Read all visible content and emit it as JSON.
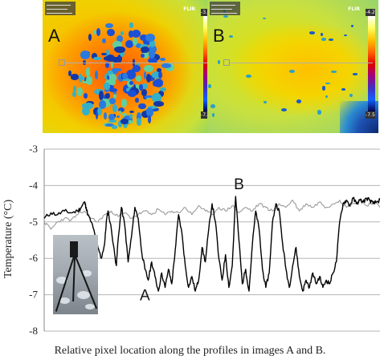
{
  "images": {
    "a": {
      "letter": "A",
      "brand": "FLIR",
      "scale_max": "-3.6",
      "scale_min": "-7.2",
      "hud": [
        "Max -4.1",
        "Min -6.9",
        "Average -5.5"
      ]
    },
    "b": {
      "letter": "B",
      "brand": "FLIR",
      "scale_max": "-4.2",
      "scale_min": "-7.5",
      "hud": [
        "Max -4.3",
        "Min -6.3",
        "Average -4.7"
      ]
    }
  },
  "chart_data": {
    "type": "line",
    "ylabel": "Temperature (°C)",
    "xlabel": "Relative pixel location along the profiles in images A and B.",
    "ylim": [
      -8,
      -3
    ],
    "yticks": [
      -3,
      -4,
      -5,
      -6,
      -7,
      -8
    ],
    "grid": true,
    "colors": {
      "A": "#000000",
      "B": "#9a9a9a",
      "grid": "#b5b5b5"
    },
    "annotations": [
      {
        "text": "A",
        "x": 0.3,
        "y": -7.0
      },
      {
        "text": "B",
        "x": 0.58,
        "y": -3.95
      }
    ],
    "series": [
      {
        "name": "A",
        "x": [
          0.0,
          0.02,
          0.04,
          0.06,
          0.08,
          0.1,
          0.11,
          0.12,
          0.125,
          0.13,
          0.14,
          0.15,
          0.16,
          0.17,
          0.18,
          0.185,
          0.19,
          0.2,
          0.21,
          0.215,
          0.22,
          0.23,
          0.24,
          0.25,
          0.26,
          0.27,
          0.28,
          0.29,
          0.3,
          0.31,
          0.32,
          0.33,
          0.34,
          0.35,
          0.36,
          0.37,
          0.38,
          0.39,
          0.4,
          0.41,
          0.42,
          0.43,
          0.44,
          0.45,
          0.46,
          0.47,
          0.48,
          0.49,
          0.5,
          0.51,
          0.52,
          0.53,
          0.54,
          0.55,
          0.56,
          0.57,
          0.58,
          0.59,
          0.6,
          0.61,
          0.62,
          0.63,
          0.64,
          0.65,
          0.66,
          0.67,
          0.68,
          0.69,
          0.7,
          0.71,
          0.72,
          0.73,
          0.74,
          0.75,
          0.76,
          0.77,
          0.78,
          0.79,
          0.8,
          0.81,
          0.82,
          0.83,
          0.84,
          0.85,
          0.86,
          0.87,
          0.88,
          0.89,
          0.9,
          0.91,
          0.92,
          0.93,
          0.94,
          0.95,
          0.96,
          0.97,
          0.98,
          0.99,
          1.0
        ],
        "y": [
          -4.9,
          -4.75,
          -4.8,
          -4.7,
          -4.75,
          -4.7,
          -4.6,
          -4.45,
          -4.6,
          -4.8,
          -5.0,
          -5.3,
          -5.7,
          -6.0,
          -5.6,
          -5.0,
          -4.7,
          -5.2,
          -5.9,
          -6.2,
          -5.5,
          -4.6,
          -5.1,
          -6.1,
          -5.4,
          -4.6,
          -4.9,
          -5.8,
          -6.3,
          -6.6,
          -6.1,
          -6.5,
          -6.9,
          -6.4,
          -6.8,
          -6.3,
          -6.7,
          -5.8,
          -4.8,
          -5.3,
          -6.2,
          -6.8,
          -6.5,
          -6.9,
          -6.6,
          -5.7,
          -6.1,
          -5.2,
          -4.5,
          -5.0,
          -6.0,
          -6.6,
          -5.9,
          -6.8,
          -6.2,
          -4.3,
          -5.5,
          -6.7,
          -6.3,
          -6.9,
          -5.6,
          -4.7,
          -5.2,
          -6.3,
          -6.8,
          -6.4,
          -5.0,
          -4.5,
          -4.7,
          -5.6,
          -6.3,
          -6.8,
          -6.2,
          -5.7,
          -6.5,
          -6.9,
          -6.6,
          -6.8,
          -6.4,
          -6.7,
          -6.5,
          -6.8,
          -6.6,
          -6.7,
          -6.4,
          -6.1,
          -5.0,
          -4.5,
          -4.4,
          -4.55,
          -4.35,
          -4.5,
          -4.4,
          -4.45,
          -4.35,
          -4.4,
          -4.5,
          -4.45,
          -4.4
        ]
      },
      {
        "name": "B",
        "x": [
          0.0,
          0.02,
          0.04,
          0.06,
          0.08,
          0.1,
          0.12,
          0.14,
          0.16,
          0.18,
          0.2,
          0.22,
          0.24,
          0.26,
          0.28,
          0.3,
          0.32,
          0.34,
          0.36,
          0.38,
          0.4,
          0.42,
          0.44,
          0.46,
          0.48,
          0.5,
          0.52,
          0.54,
          0.56,
          0.58,
          0.6,
          0.62,
          0.64,
          0.66,
          0.68,
          0.7,
          0.72,
          0.74,
          0.76,
          0.78,
          0.8,
          0.82,
          0.84,
          0.86,
          0.88,
          0.9,
          0.92,
          0.94,
          0.96,
          0.98,
          1.0
        ],
        "y": [
          -5.0,
          -5.2,
          -5.0,
          -4.9,
          -4.95,
          -4.8,
          -4.7,
          -4.9,
          -5.0,
          -4.8,
          -4.7,
          -4.85,
          -4.75,
          -4.9,
          -4.8,
          -4.7,
          -4.8,
          -4.65,
          -4.8,
          -4.7,
          -4.75,
          -4.6,
          -4.8,
          -4.55,
          -4.7,
          -4.8,
          -4.6,
          -4.7,
          -4.55,
          -4.75,
          -4.6,
          -4.7,
          -4.5,
          -4.6,
          -4.7,
          -4.5,
          -4.6,
          -4.4,
          -4.7,
          -4.5,
          -4.6,
          -4.45,
          -4.6,
          -4.5,
          -4.4,
          -4.6,
          -4.5,
          -4.4,
          -4.55,
          -4.45,
          -4.6
        ]
      }
    ]
  }
}
